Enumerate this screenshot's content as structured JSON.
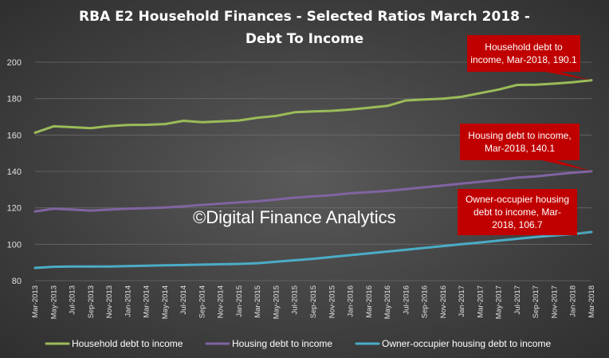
{
  "chart_data": {
    "type": "line",
    "title_line1": "RBA E2 Household Finances - Selected Ratios March 2018 -",
    "title_line2": "Debt To Income",
    "ylim": [
      80,
      200
    ],
    "yticks": [
      80,
      100,
      120,
      140,
      160,
      180,
      200
    ],
    "grid": "horizontal",
    "legend_position": "bottom",
    "categories": [
      "Mar-2013",
      "May-2013",
      "Jul-2013",
      "Sep-2013",
      "Nov-2013",
      "Jan-2014",
      "Mar-2014",
      "May-2014",
      "Jul-2014",
      "Sep-2014",
      "Nov-2014",
      "Jan-2015",
      "Mar-2015",
      "May-2015",
      "Jul-2015",
      "Sep-2015",
      "Nov-2015",
      "Jan-2016",
      "Mar-2016",
      "May-2016",
      "Jul-2016",
      "Sep-2016",
      "Nov-2016",
      "Jan-2017",
      "Mar-2017",
      "May-2017",
      "Jul-2017",
      "Sep-2017",
      "Nov-2017",
      "Jan-2018",
      "Mar-2018"
    ],
    "series": [
      {
        "name": "Household debt to income",
        "color": "#9bbb59",
        "values": [
          161.3,
          164.8,
          164.3,
          163.8,
          164.9,
          165.5,
          165.6,
          166.0,
          167.8,
          167.0,
          167.5,
          168.0,
          169.5,
          170.5,
          172.5,
          173.0,
          173.3,
          174.0,
          175.0,
          176.0,
          179.0,
          179.5,
          180.0,
          181.0,
          183.0,
          185.0,
          187.5,
          187.6,
          188.2,
          189.0,
          190.1
        ]
      },
      {
        "name": "Housing debt to income",
        "color": "#8064a2",
        "values": [
          118.0,
          119.5,
          119.0,
          118.5,
          119.0,
          119.5,
          119.8,
          120.2,
          120.8,
          121.6,
          122.3,
          123.0,
          123.6,
          124.6,
          125.6,
          126.3,
          127.0,
          128.0,
          128.6,
          129.3,
          130.3,
          131.3,
          132.3,
          133.3,
          134.3,
          135.3,
          136.6,
          137.3,
          138.3,
          139.3,
          140.1
        ]
      },
      {
        "name": "Owner-occupier housing debt to income",
        "color": "#4bacc6",
        "values": [
          87.0,
          87.6,
          87.8,
          87.8,
          87.8,
          88.0,
          88.2,
          88.4,
          88.6,
          88.8,
          89.0,
          89.2,
          89.6,
          90.4,
          91.2,
          92.0,
          93.0,
          94.0,
          95.0,
          96.0,
          97.0,
          98.0,
          99.0,
          100.0,
          101.0,
          102.0,
          103.0,
          104.0,
          104.8,
          105.6,
          106.7
        ]
      }
    ],
    "annotations": [
      {
        "lines": [
          "Household debt to",
          "income, Mar-2018, 190.1"
        ],
        "series_index": 0
      },
      {
        "lines": [
          "Housing debt to income,",
          "Mar-2018, 140.1"
        ],
        "series_index": 1
      },
      {
        "lines": [
          "Owner-occupier housing",
          "debt to income, Mar-",
          "2018, 106.7"
        ],
        "series_index": 2
      }
    ],
    "watermark": "©Digital Finance Analytics",
    "annotation_color": "#c00000"
  }
}
